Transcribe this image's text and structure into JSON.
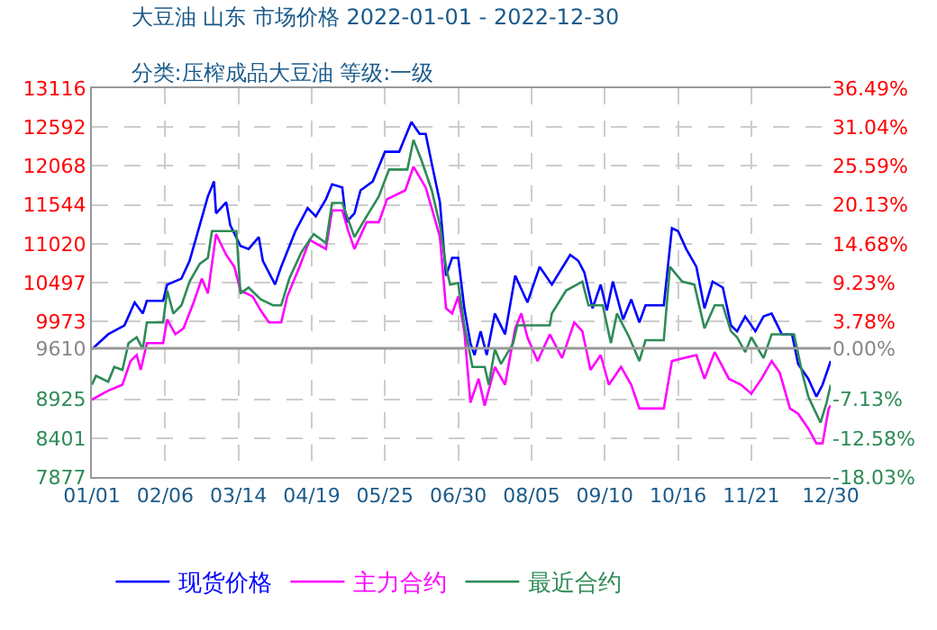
{
  "chart_data": {
    "type": "line",
    "title": "大豆油 山东 市场价格 2022-01-01 - 2022-12-30",
    "subtitle": "分类:压榨成品大豆油 等级:一级",
    "xlim": [
      "2022-01-01",
      "2022-12-30"
    ],
    "xticks": [
      {
        "value": "2022-01-01",
        "label": "01/01"
      },
      {
        "value": "2022-02-06",
        "label": "02/06"
      },
      {
        "value": "2022-03-14",
        "label": "03/14"
      },
      {
        "value": "2022-04-19",
        "label": "04/19"
      },
      {
        "value": "2022-05-25",
        "label": "05/25"
      },
      {
        "value": "2022-06-30",
        "label": "06/30"
      },
      {
        "value": "2022-08-05",
        "label": "08/05"
      },
      {
        "value": "2022-09-10",
        "label": "09/10"
      },
      {
        "value": "2022-10-16",
        "label": "10/16"
      },
      {
        "value": "2022-11-21",
        "label": "11/21"
      },
      {
        "value": "2022-12-30",
        "label": "12/30"
      }
    ],
    "ylim": [
      7877,
      13116
    ],
    "yticks": [
      7877,
      8401,
      8925,
      9610,
      9973,
      10497,
      11020,
      11544,
      12068,
      12592,
      13116
    ],
    "y2lim": [
      -18.03,
      36.49
    ],
    "y2ticks": [
      {
        "value": -18.03,
        "label": "-18.03%"
      },
      {
        "value": -12.58,
        "label": "-12.58%"
      },
      {
        "value": -7.13,
        "label": "-7.13%"
      },
      {
        "value": 0,
        "label": "0.00%"
      },
      {
        "value": 3.78,
        "label": "3.78%"
      },
      {
        "value": 9.23,
        "label": "9.23%"
      },
      {
        "value": 14.68,
        "label": "14.68%"
      },
      {
        "value": 20.13,
        "label": "20.13%"
      },
      {
        "value": 25.59,
        "label": "25.59%"
      },
      {
        "value": 31.04,
        "label": "31.04%"
      },
      {
        "value": 36.49,
        "label": "36.49%"
      }
    ],
    "ref_lines": [
      {
        "axis": "y",
        "value": 9610,
        "color": "#999999"
      }
    ],
    "grid": true,
    "legend": "bottom",
    "line_style": "solid",
    "series": [
      {
        "name": "现货价格",
        "color": "#0000ff",
        "x": [
          "2022-01-01",
          "2022-01-09",
          "2022-01-17",
          "2022-01-22",
          "2022-01-26",
          "2022-01-28",
          "2022-02-05",
          "2022-02-07",
          "2022-02-14",
          "2022-02-18",
          "2022-02-23",
          "2022-02-27",
          "2022-03-02",
          "2022-03-03",
          "2022-03-08",
          "2022-03-10",
          "2022-03-15",
          "2022-03-19",
          "2022-03-24",
          "2022-03-26",
          "2022-04-01",
          "2022-04-04",
          "2022-04-11",
          "2022-04-17",
          "2022-04-21",
          "2022-04-26",
          "2022-04-29",
          "2022-05-04",
          "2022-05-06",
          "2022-05-10",
          "2022-05-13",
          "2022-05-19",
          "2022-05-25",
          "2022-06-01",
          "2022-06-07",
          "2022-06-11",
          "2022-06-14",
          "2022-06-17",
          "2022-06-21",
          "2022-06-24",
          "2022-06-27",
          "2022-06-30",
          "2022-07-03",
          "2022-07-06",
          "2022-07-08",
          "2022-07-11",
          "2022-07-14",
          "2022-07-18",
          "2022-07-23",
          "2022-07-28",
          "2022-08-03",
          "2022-08-09",
          "2022-08-15",
          "2022-08-24",
          "2022-08-28",
          "2022-08-31",
          "2022-09-04",
          "2022-09-08",
          "2022-09-11",
          "2022-09-14",
          "2022-09-19",
          "2022-09-23",
          "2022-09-27",
          "2022-09-30",
          "2022-10-09",
          "2022-10-13",
          "2022-10-16",
          "2022-10-20",
          "2022-10-25",
          "2022-10-29",
          "2022-11-02",
          "2022-11-07",
          "2022-11-11",
          "2022-11-14",
          "2022-11-18",
          "2022-11-23",
          "2022-11-27",
          "2022-12-01",
          "2022-12-06",
          "2022-12-11",
          "2022-12-14",
          "2022-12-19",
          "2022-12-23",
          "2022-12-26",
          "2022-12-30"
        ],
        "values": [
          9600,
          9800,
          9920,
          10230,
          10080,
          10250,
          10250,
          10470,
          10550,
          10790,
          11270,
          11660,
          11860,
          11430,
          11580,
          11270,
          10990,
          10950,
          11110,
          10790,
          10470,
          10710,
          11190,
          11500,
          11390,
          11620,
          11820,
          11780,
          11310,
          11430,
          11740,
          11860,
          12260,
          12260,
          12660,
          12500,
          12500,
          12100,
          11580,
          10590,
          10830,
          10830,
          10150,
          9680,
          9520,
          9840,
          9520,
          10080,
          9800,
          10590,
          10230,
          10710,
          10470,
          10870,
          10790,
          10630,
          10150,
          10470,
          10120,
          10510,
          10000,
          10270,
          9960,
          10190,
          10190,
          11230,
          11190,
          10950,
          10710,
          10150,
          10510,
          10430,
          9920,
          9840,
          10040,
          9840,
          10040,
          10080,
          9800,
          9800,
          9400,
          9200,
          8960,
          9120,
          9440
        ]
      },
      {
        "name": "主力合约",
        "color": "#ff00ff",
        "x": [
          "2022-01-01",
          "2022-01-09",
          "2022-01-16",
          "2022-01-20",
          "2022-01-23",
          "2022-01-25",
          "2022-01-28",
          "2022-02-05",
          "2022-02-07",
          "2022-02-11",
          "2022-02-15",
          "2022-02-20",
          "2022-02-24",
          "2022-02-27",
          "2022-03-03",
          "2022-03-08",
          "2022-03-12",
          "2022-03-15",
          "2022-03-21",
          "2022-03-25",
          "2022-03-29",
          "2022-04-04",
          "2022-04-07",
          "2022-04-13",
          "2022-04-18",
          "2022-04-26",
          "2022-04-29",
          "2022-05-04",
          "2022-05-07",
          "2022-05-10",
          "2022-05-16",
          "2022-05-22",
          "2022-05-26",
          "2022-06-04",
          "2022-06-08",
          "2022-06-14",
          "2022-06-17",
          "2022-06-21",
          "2022-06-24",
          "2022-06-27",
          "2022-06-30",
          "2022-07-03",
          "2022-07-06",
          "2022-07-10",
          "2022-07-13",
          "2022-07-18",
          "2022-07-23",
          "2022-07-28",
          "2022-07-31",
          "2022-08-03",
          "2022-08-08",
          "2022-08-14",
          "2022-08-20",
          "2022-08-26",
          "2022-08-30",
          "2022-09-03",
          "2022-09-08",
          "2022-09-12",
          "2022-09-18",
          "2022-09-23",
          "2022-09-27",
          "2022-10-09",
          "2022-10-13",
          "2022-10-19",
          "2022-10-25",
          "2022-10-29",
          "2022-11-03",
          "2022-11-10",
          "2022-11-16",
          "2022-11-21",
          "2022-11-26",
          "2022-12-01",
          "2022-12-05",
          "2022-12-10",
          "2022-12-14",
          "2022-12-19",
          "2022-12-23",
          "2022-12-26",
          "2022-12-29",
          "2022-12-30"
        ],
        "values": [
          8920,
          9040,
          9120,
          9440,
          9520,
          9320,
          9680,
          9680,
          10000,
          9800,
          9880,
          10230,
          10550,
          10350,
          11150,
          10870,
          10710,
          10390,
          10310,
          10120,
          9960,
          9960,
          10310,
          10710,
          11070,
          10950,
          11470,
          11470,
          11190,
          10950,
          11310,
          11310,
          11620,
          11740,
          12060,
          11780,
          11500,
          11110,
          10150,
          10080,
          10310,
          9840,
          8880,
          9200,
          8840,
          9360,
          9120,
          9880,
          10080,
          9760,
          9440,
          9800,
          9480,
          9960,
          9840,
          9320,
          9520,
          9120,
          9360,
          9120,
          8800,
          8800,
          9440,
          9480,
          9520,
          9200,
          9560,
          9200,
          9120,
          9000,
          9200,
          9440,
          9280,
          8800,
          8730,
          8530,
          8330,
          8330,
          8800,
          8840
        ]
      },
      {
        "name": "最近合约",
        "color": "#2e8b57",
        "x": [
          "2022-01-01",
          "2022-01-03",
          "2022-01-09",
          "2022-01-12",
          "2022-01-16",
          "2022-01-19",
          "2022-01-23",
          "2022-01-26",
          "2022-01-28",
          "2022-02-05",
          "2022-02-07",
          "2022-02-10",
          "2022-02-14",
          "2022-02-18",
          "2022-02-23",
          "2022-02-27",
          "2022-03-01",
          "2022-03-13",
          "2022-03-15",
          "2022-03-19",
          "2022-03-25",
          "2022-03-31",
          "2022-04-04",
          "2022-04-08",
          "2022-04-14",
          "2022-04-20",
          "2022-04-26",
          "2022-04-29",
          "2022-05-04",
          "2022-05-10",
          "2022-05-16",
          "2022-05-22",
          "2022-05-27",
          "2022-06-05",
          "2022-06-08",
          "2022-06-12",
          "2022-06-17",
          "2022-06-21",
          "2022-06-24",
          "2022-06-26",
          "2022-06-30",
          "2022-07-03",
          "2022-07-07",
          "2022-07-13",
          "2022-07-15",
          "2022-07-18",
          "2022-07-21",
          "2022-07-27",
          "2022-07-29",
          "2022-08-14",
          "2022-08-15",
          "2022-08-22",
          "2022-08-30",
          "2022-09-02",
          "2022-09-09",
          "2022-09-13",
          "2022-09-16",
          "2022-09-22",
          "2022-09-27",
          "2022-09-30",
          "2022-10-09",
          "2022-10-12",
          "2022-10-18",
          "2022-10-24",
          "2022-10-29",
          "2022-11-03",
          "2022-11-07",
          "2022-11-11",
          "2022-11-14",
          "2022-11-18",
          "2022-11-21",
          "2022-11-27",
          "2022-12-01",
          "2022-12-12",
          "2022-12-16",
          "2022-12-19",
          "2022-12-25",
          "2022-12-28",
          "2022-12-30"
        ],
        "values": [
          9120,
          9240,
          9160,
          9360,
          9320,
          9680,
          9760,
          9600,
          9960,
          9960,
          10390,
          10080,
          10190,
          10510,
          10750,
          10830,
          11190,
          11190,
          10350,
          10430,
          10270,
          10190,
          10190,
          10550,
          10910,
          11150,
          11030,
          11570,
          11570,
          11110,
          11390,
          11660,
          12020,
          12020,
          12420,
          12140,
          11740,
          11270,
          10710,
          10470,
          10490,
          9920,
          9360,
          9360,
          9120,
          9600,
          9400,
          9680,
          9920,
          9920,
          10080,
          10390,
          10510,
          10190,
          10190,
          9680,
          10080,
          9760,
          9440,
          9720,
          9720,
          10710,
          10510,
          10470,
          9880,
          10190,
          10190,
          9840,
          9760,
          9560,
          9760,
          9480,
          9800,
          9800,
          9280,
          8960,
          8610,
          8880,
          9120
        ]
      }
    ]
  }
}
